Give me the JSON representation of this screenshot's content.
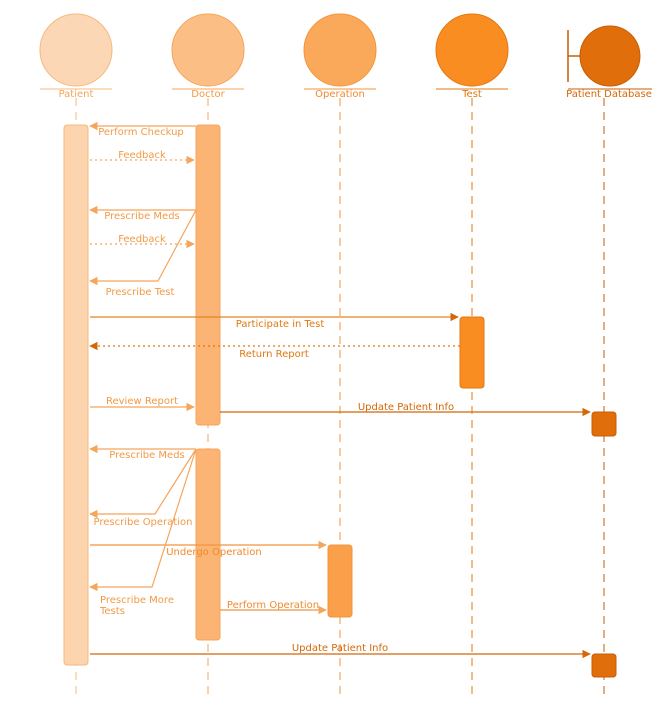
{
  "actors": [
    {
      "id": "patient",
      "label": "Patient",
      "fill": "#FBD7B6",
      "stroke": "#F6B97E",
      "text": "#F2A65A"
    },
    {
      "id": "doctor",
      "label": "Doctor",
      "fill": "#FBBF85",
      "stroke": "#F5A55C",
      "text": "#F29A45"
    },
    {
      "id": "operation",
      "label": "Operation",
      "fill": "#FAA95A",
      "stroke": "#F2953B",
      "text": "#F08A2E"
    },
    {
      "id": "test",
      "label": "Test",
      "fill": "#F98D21",
      "stroke": "#E07810",
      "text": "#E07810"
    },
    {
      "id": "database",
      "label": "Patient Database",
      "fill": "#E06E0A",
      "stroke": "#C85D05",
      "text": "#D46707"
    }
  ],
  "messages": [
    {
      "id": "perform-checkup",
      "label": "Perform Checkup",
      "from": "doctor",
      "to": "patient",
      "style": "solid"
    },
    {
      "id": "feedback-1",
      "label": "Feedback",
      "from": "patient",
      "to": "doctor",
      "style": "dotted"
    },
    {
      "id": "prescribe-meds-1",
      "label": "Prescribe Meds",
      "from": "doctor",
      "to": "patient",
      "style": "solid"
    },
    {
      "id": "feedback-2",
      "label": "Feedback",
      "from": "patient",
      "to": "doctor",
      "style": "dotted"
    },
    {
      "id": "prescribe-test",
      "label": "Prescribe Test",
      "from": "doctor",
      "to": "patient",
      "style": "solid"
    },
    {
      "id": "participate-in-test",
      "label": "Participate in Test",
      "from": "patient",
      "to": "test",
      "style": "solid"
    },
    {
      "id": "return-report",
      "label": "Return Report",
      "from": "test",
      "to": "patient",
      "style": "dotted"
    },
    {
      "id": "review-report",
      "label": "Review Report",
      "from": "patient",
      "to": "doctor",
      "style": "solid"
    },
    {
      "id": "update-patient-info-1",
      "label": "Update Patient Info",
      "from": "doctor",
      "to": "database",
      "style": "solid"
    },
    {
      "id": "prescribe-meds-2",
      "label": "Prescribe Meds",
      "from": "doctor",
      "to": "patient",
      "style": "solid"
    },
    {
      "id": "prescribe-operation",
      "label": "Prescribe Operation",
      "from": "doctor",
      "to": "patient",
      "style": "solid"
    },
    {
      "id": "undergo-operation",
      "label": "Undergo Operation",
      "from": "patient",
      "to": "operation",
      "style": "solid"
    },
    {
      "id": "prescribe-more-tests",
      "label": "Prescribe More Tests",
      "from": "doctor",
      "to": "patient",
      "style": "solid"
    },
    {
      "id": "perform-operation",
      "label": "Perform Operation",
      "from": "doctor",
      "to": "operation",
      "style": "solid"
    },
    {
      "id": "update-patient-info-2",
      "label": "Update Patient Info",
      "from": "patient",
      "to": "database",
      "style": "solid"
    }
  ]
}
